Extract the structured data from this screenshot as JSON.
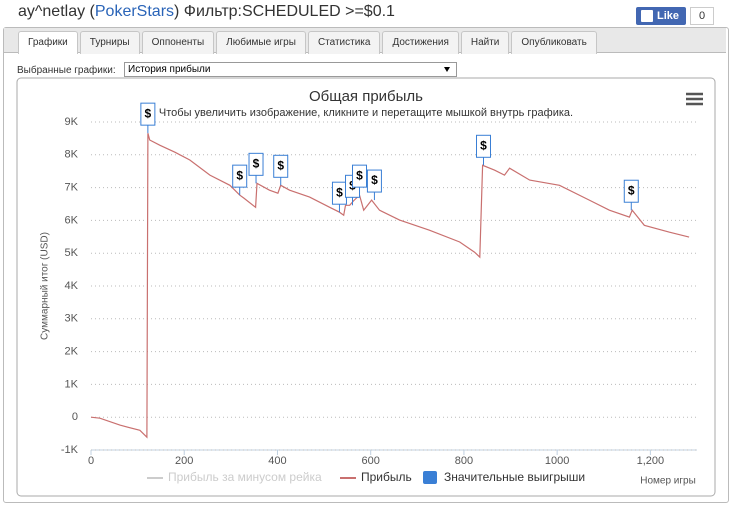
{
  "header": {
    "title_parts": [
      "ay^netlay (",
      "PokerStars",
      ") Фильтр:SCHEDULED >=$0.1"
    ],
    "like_label": "Like",
    "like_count": "0"
  },
  "tabs": [
    "Графики",
    "Турниры",
    "Оппоненты",
    "Любимые игры",
    "Статистика",
    "Достижения",
    "Найти",
    "Опубликовать"
  ],
  "active_tab": 0,
  "selector": {
    "label": "Выбранные графики:",
    "value": "История прибыли"
  },
  "chart_data": {
    "type": "line",
    "title": "Общая прибыль",
    "subtitle": "Чтобы увеличить изображение, кликните и перетащите мышкой внутрь графика.",
    "ylabel": "Суммарный итог (USD)",
    "xlabel": "Номер игры",
    "xlim": [
      0,
      1300
    ],
    "ylim": [
      -1000,
      9000
    ],
    "xticks": [
      0,
      200,
      400,
      600,
      800,
      1000,
      {
        "value": 1200,
        "label": "1,200"
      }
    ],
    "yticks": [
      {
        "value": -1000,
        "label": "-1K"
      },
      0,
      {
        "value": 1000,
        "label": "1K"
      },
      {
        "value": 2000,
        "label": "2K"
      },
      {
        "value": 3000,
        "label": "3K"
      },
      {
        "value": 4000,
        "label": "4K"
      },
      {
        "value": 5000,
        "label": "5K"
      },
      {
        "value": 6000,
        "label": "6K"
      },
      {
        "value": 7000,
        "label": "7K"
      },
      {
        "value": 8000,
        "label": "8K"
      },
      {
        "value": 9000,
        "label": "9K"
      }
    ],
    "grid": true,
    "series": [
      {
        "name": "Прибыль за минусом рейка",
        "color": "#cccccc",
        "visible": false,
        "x": [],
        "values": []
      },
      {
        "name": "Прибыль",
        "color": "#c9706f",
        "visible": true,
        "x": [
          0,
          19,
          62,
          105,
          120,
          122,
          126,
          148,
          180,
          212,
          255,
          298,
          319,
          328,
          353,
          356,
          383,
          401,
          407,
          426,
          469,
          512,
          533,
          542,
          546,
          555,
          563,
          576,
          585,
          602,
          619,
          662,
          726,
          791,
          823,
          834,
          840,
          866,
          887,
          898,
          941,
          1005,
          1069,
          1112,
          1155,
          1161,
          1187,
          1241,
          1283
        ],
        "values": [
          0,
          -30,
          -240,
          -400,
          -610,
          8660,
          8450,
          8290,
          8080,
          7840,
          7380,
          7070,
          6770,
          6680,
          6400,
          7130,
          6920,
          6830,
          7070,
          6920,
          6710,
          6400,
          6250,
          6160,
          6460,
          6460,
          6590,
          6770,
          6310,
          6620,
          6310,
          6010,
          5700,
          5340,
          5030,
          4880,
          7680,
          7530,
          7380,
          7590,
          7230,
          7070,
          6620,
          6310,
          6100,
          6310,
          5850,
          5640,
          5490
        ]
      },
      {
        "name": "Значительные выигрыши",
        "color": "#3a7fd5",
        "visible": true,
        "marker_label": "$",
        "x": [
          122,
          319,
          354,
          407,
          533,
          561,
          576,
          608,
          842,
          1159
        ],
        "values": [
          8660,
          6770,
          7130,
          7070,
          6250,
          6460,
          6770,
          6620,
          7680,
          6310
        ]
      }
    ]
  }
}
